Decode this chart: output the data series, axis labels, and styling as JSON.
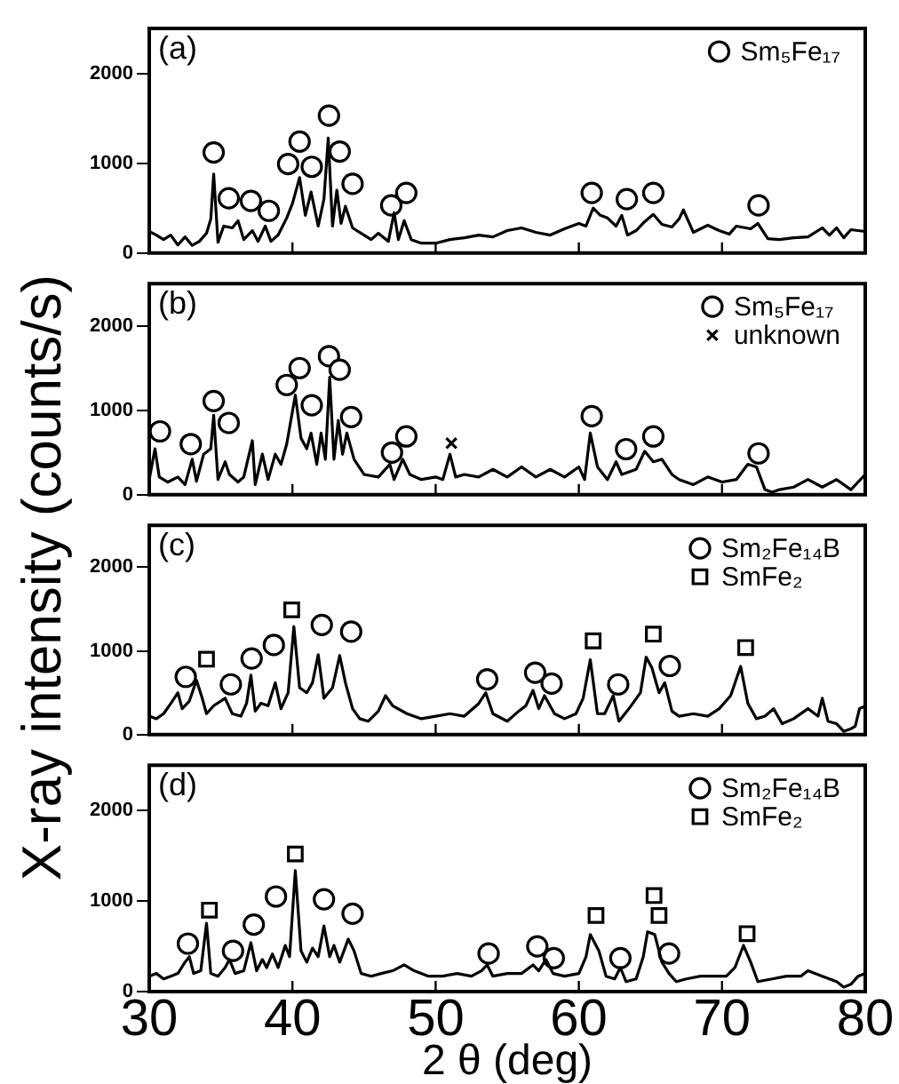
{
  "chart_data": [
    {
      "type": "line",
      "title": "(a)",
      "ylabel": "X-ray intensity (counts/s)",
      "xlim": [
        30,
        80
      ],
      "xticks": [
        30,
        40,
        50,
        60,
        70,
        80
      ],
      "ylim": [
        0,
        2500
      ],
      "yticks": [
        0,
        1000,
        2000
      ],
      "tick_labels": "y",
      "legend": "top right",
      "grid": false,
      "series": [
        {
          "color": "#000000",
          "marker": "none",
          "x": [
            30,
            30.5,
            31,
            31.5,
            32,
            32.5,
            33,
            33.5,
            34,
            34.3,
            34.5,
            34.8,
            35.2,
            35.8,
            36.2,
            36.6,
            37.2,
            37.6,
            38.1,
            38.5,
            39,
            39.6,
            40,
            40.5,
            40.9,
            41.3,
            41.8,
            42.2,
            42.5,
            42.8,
            43.1,
            43.4,
            43.7,
            44.2,
            45,
            45.5,
            46,
            46.7,
            47.1,
            47.4,
            47.8,
            48.3,
            49,
            50,
            51,
            52,
            53,
            54,
            55,
            56,
            57,
            58,
            59,
            60,
            60.5,
            61,
            61.5,
            62,
            62.6,
            63,
            63.4,
            64,
            64.6,
            65.2,
            65.8,
            66.5,
            67,
            67.3,
            68,
            69,
            69.8,
            70.5,
            71,
            72,
            72.5,
            73.2,
            74,
            75,
            76,
            77,
            77.5,
            78,
            78.5,
            79,
            80
          ],
          "values": [
            240,
            200,
            150,
            200,
            90,
            180,
            85,
            130,
            220,
            380,
            880,
            120,
            300,
            280,
            360,
            150,
            250,
            130,
            300,
            130,
            200,
            390,
            550,
            840,
            420,
            680,
            300,
            600,
            1280,
            300,
            700,
            330,
            520,
            280,
            200,
            150,
            220,
            130,
            450,
            150,
            360,
            150,
            110,
            110,
            150,
            170,
            200,
            180,
            250,
            280,
            230,
            200,
            270,
            330,
            300,
            500,
            420,
            390,
            300,
            420,
            200,
            250,
            350,
            430,
            320,
            290,
            380,
            480,
            230,
            310,
            250,
            210,
            300,
            270,
            330,
            160,
            150,
            170,
            180,
            280,
            200,
            280,
            170,
            260,
            240
          ]
        },
        {
          "type": "scatter",
          "name": "Sm₅Fe₁₇",
          "color": "#000000",
          "marker": "circle",
          "x": [
            34.5,
            35.55,
            37.1,
            38.35,
            39.7,
            40.5,
            41.35,
            42.55,
            43.3,
            44.2,
            46.9,
            47.95,
            60.9,
            63.35,
            65.2,
            72.55
          ],
          "values": [
            1120,
            610,
            580,
            470,
            990,
            1240,
            960,
            1530,
            1130,
            770,
            530,
            670,
            670,
            600,
            670,
            530
          ]
        }
      ]
    },
    {
      "type": "line",
      "title": "(b)",
      "xlim": [
        30,
        80
      ],
      "xticks": [
        30,
        40,
        50,
        60,
        70,
        80
      ],
      "ylim": [
        0,
        2500
      ],
      "yticks": [
        0,
        1000,
        2000
      ],
      "tick_labels": "y",
      "legend": "top right",
      "grid": false,
      "series": [
        {
          "color": "#000000",
          "marker": "none",
          "x": [
            30,
            30.4,
            30.7,
            31.3,
            32,
            32.5,
            33,
            33.3,
            33.8,
            34.3,
            34.5,
            34.8,
            35.3,
            35.6,
            36.2,
            36.6,
            37.2,
            37.4,
            37.9,
            38.3,
            38.8,
            39.2,
            39.6,
            40.2,
            40.6,
            41,
            41.3,
            41.7,
            42,
            42.3,
            42.6,
            42.9,
            43.2,
            43.5,
            43.8,
            44.3,
            45,
            46,
            46.8,
            47.1,
            47.7,
            48.2,
            49,
            50,
            50.5,
            51,
            51.4,
            52,
            53,
            54,
            55,
            56,
            57,
            58,
            59,
            60,
            60.4,
            60.8,
            61.3,
            62,
            62.6,
            63,
            64,
            64.6,
            65.2,
            65.8,
            66.5,
            67,
            68,
            69,
            70,
            71,
            71.8,
            72.4,
            73,
            73.5,
            74,
            75,
            76,
            77,
            78,
            79,
            80
          ],
          "values": [
            180,
            545,
            210,
            150,
            210,
            120,
            420,
            160,
            480,
            545,
            940,
            180,
            390,
            240,
            150,
            210,
            640,
            120,
            480,
            180,
            480,
            360,
            600,
            1180,
            670,
            545,
            730,
            360,
            730,
            420,
            1390,
            420,
            880,
            480,
            730,
            420,
            240,
            210,
            360,
            180,
            420,
            240,
            180,
            210,
            180,
            480,
            210,
            240,
            210,
            300,
            210,
            330,
            210,
            300,
            210,
            330,
            180,
            730,
            330,
            180,
            390,
            240,
            300,
            515,
            390,
            420,
            240,
            180,
            120,
            210,
            150,
            180,
            360,
            330,
            60,
            30,
            60,
            90,
            180,
            90,
            180,
            60,
            240
          ]
        },
        {
          "type": "scatter",
          "name": "Sm₅Fe₁₇",
          "color": "#000000",
          "marker": "circle",
          "x": [
            30.75,
            32.9,
            34.5,
            35.55,
            39.6,
            40.5,
            41.35,
            42.55,
            43.3,
            44.1,
            46.95,
            47.95,
            60.9,
            63.3,
            65.2,
            72.55
          ],
          "values": [
            750,
            600,
            1110,
            850,
            1300,
            1500,
            1060,
            1640,
            1480,
            920,
            500,
            690,
            930,
            540,
            690,
            490
          ]
        },
        {
          "type": "scatter",
          "name": "unknown",
          "color": "#000000",
          "marker": "cross",
          "x": [
            51.1
          ],
          "values": [
            610
          ]
        }
      ]
    },
    {
      "type": "line",
      "title": "(c)",
      "xlim": [
        30,
        80
      ],
      "xticks": [
        30,
        40,
        50,
        60,
        70,
        80
      ],
      "ylim": [
        0,
        2500
      ],
      "yticks": [
        0,
        1000,
        2000
      ],
      "tick_labels": "y",
      "legend": "top right",
      "grid": false,
      "series": [
        {
          "color": "#000000",
          "marker": "none",
          "x": [
            30,
            30.5,
            31,
            31.5,
            32,
            32.3,
            32.8,
            33.3,
            33.7,
            34,
            34.5,
            35.3,
            35.8,
            36.4,
            36.8,
            37.1,
            37.4,
            37.8,
            38.3,
            38.8,
            39.2,
            39.7,
            40.1,
            40.5,
            41,
            41.4,
            41.8,
            42.2,
            42.8,
            43.3,
            43.7,
            44.2,
            44.7,
            45.3,
            46,
            46.5,
            47,
            48,
            49,
            50,
            51,
            52,
            53,
            53.5,
            54,
            55,
            55.8,
            56.3,
            56.8,
            57.2,
            57.6,
            58.3,
            59,
            59.8,
            60.3,
            60.8,
            61.3,
            61.8,
            62.4,
            62.8,
            63.5,
            64.3,
            64.7,
            65.1,
            65.6,
            66,
            66.5,
            67,
            68,
            69,
            69.8,
            70.6,
            71.3,
            71.8,
            72.4,
            73,
            73.6,
            74.2,
            75,
            76,
            76.7,
            77,
            77.4,
            78,
            78.5,
            79,
            79.3,
            79.6,
            80
          ],
          "values": [
            220,
            190,
            250,
            370,
            500,
            310,
            400,
            650,
            435,
            250,
            345,
            435,
            250,
            220,
            375,
            710,
            280,
            375,
            345,
            620,
            310,
            500,
            1290,
            560,
            500,
            620,
            955,
            435,
            560,
            945,
            620,
            310,
            190,
            160,
            280,
            465,
            345,
            250,
            190,
            220,
            250,
            220,
            370,
            500,
            250,
            160,
            280,
            345,
            530,
            310,
            465,
            250,
            190,
            250,
            435,
            895,
            250,
            250,
            465,
            160,
            310,
            500,
            925,
            800,
            500,
            620,
            280,
            220,
            250,
            220,
            310,
            465,
            815,
            375,
            190,
            220,
            310,
            130,
            190,
            310,
            220,
            435,
            160,
            130,
            40,
            70,
            100,
            310,
            340
          ]
        },
        {
          "type": "scatter",
          "name": "Sm₂Fe₁₄B",
          "color": "#000000",
          "marker": "circle",
          "x": [
            32.55,
            35.7,
            37.15,
            38.7,
            42.05,
            44.1,
            53.6,
            56.95,
            58.1,
            62.75,
            66.35
          ],
          "values": [
            690,
            600,
            910,
            1070,
            1310,
            1230,
            660,
            740,
            610,
            600,
            820
          ]
        },
        {
          "type": "scatter",
          "name": "SmFe₂",
          "color": "#000000",
          "marker": "square",
          "x": [
            34.0,
            39.95,
            61.0,
            65.2,
            71.65
          ],
          "values": [
            900,
            1490,
            1120,
            1200,
            1040
          ]
        }
      ]
    },
    {
      "type": "line",
      "title": "(d)",
      "xlabel": "2 θ (deg)",
      "xlim": [
        30,
        80
      ],
      "xticks": [
        30,
        40,
        50,
        60,
        70,
        80
      ],
      "ylim": [
        0,
        2500
      ],
      "yticks": [
        0,
        1000,
        2000
      ],
      "legend": "top right",
      "grid": false,
      "series": [
        {
          "color": "#000000",
          "marker": "none",
          "x": [
            30,
            30.5,
            31,
            31.5,
            32,
            32.5,
            32.8,
            33.1,
            33.6,
            34,
            34.3,
            34.8,
            35.3,
            35.6,
            36,
            36.6,
            37.1,
            37.5,
            37.9,
            38.2,
            38.6,
            39,
            39.5,
            39.8,
            40.2,
            40.6,
            41,
            41.4,
            41.8,
            42.2,
            42.6,
            42.9,
            43.3,
            43.9,
            44.3,
            44.8,
            45.5,
            46.2,
            47,
            47.8,
            48.5,
            49.5,
            50.5,
            51.5,
            52.5,
            53.2,
            53.6,
            54,
            55,
            56,
            56.8,
            57.2,
            57.7,
            58.2,
            59,
            60,
            60.5,
            60.8,
            61.4,
            61.9,
            62.5,
            62.9,
            63.3,
            64,
            64.5,
            64.8,
            65.3,
            65.8,
            66.3,
            66.8,
            67.5,
            68.5,
            69.5,
            70.3,
            70.9,
            71.5,
            72,
            72.5,
            73.5,
            74.5,
            75.5,
            76,
            77,
            78,
            78.5,
            79,
            79.5,
            80
          ],
          "values": [
            170,
            200,
            140,
            170,
            200,
            325,
            385,
            200,
            230,
            755,
            200,
            170,
            265,
            355,
            200,
            230,
            540,
            230,
            355,
            265,
            415,
            265,
            510,
            385,
            1335,
            450,
            325,
            480,
            385,
            725,
            385,
            510,
            325,
            580,
            450,
            200,
            170,
            200,
            230,
            295,
            230,
            170,
            170,
            200,
            170,
            230,
            295,
            170,
            200,
            200,
            295,
            230,
            355,
            200,
            170,
            200,
            385,
            630,
            450,
            170,
            140,
            265,
            110,
            140,
            385,
            660,
            630,
            325,
            200,
            110,
            140,
            170,
            170,
            170,
            265,
            510,
            325,
            110,
            140,
            170,
            170,
            230,
            170,
            110,
            50,
            80,
            170,
            200
          ]
        },
        {
          "type": "scatter",
          "name": "Sm₂Fe₁₄B",
          "color": "#000000",
          "marker": "circle",
          "x": [
            32.7,
            35.85,
            37.3,
            38.85,
            42.2,
            44.2,
            53.7,
            57.1,
            58.25,
            62.9,
            66.3
          ],
          "values": [
            530,
            450,
            740,
            1050,
            1020,
            860,
            420,
            500,
            370,
            370,
            420
          ]
        },
        {
          "type": "scatter",
          "name": "SmFe₂",
          "color": "#000000",
          "marker": "square",
          "x": [
            34.2,
            40.2,
            61.2,
            65.25,
            65.6,
            71.75
          ],
          "values": [
            900,
            1520,
            840,
            1060,
            840,
            640
          ]
        }
      ]
    }
  ]
}
